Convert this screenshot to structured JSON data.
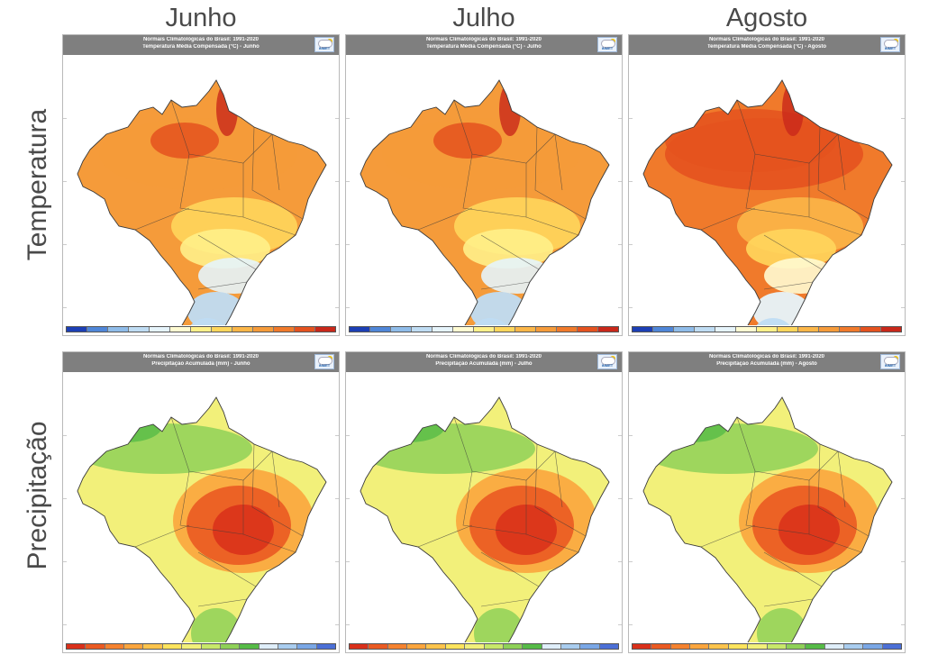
{
  "columns": [
    "Junho",
    "Julho",
    "Agosto"
  ],
  "rows": [
    "Temperatura",
    "Precipitação"
  ],
  "panels": [
    {
      "title": "Normais Climatológicas do Brasil: 1991-2020",
      "subtitle": "Temperatura Média Compensada (°C) - Junho"
    },
    {
      "title": "Normais Climatológicas do Brasil: 1991-2020",
      "subtitle": "Temperatura Média Compensada (°C) - Julho"
    },
    {
      "title": "Normais Climatológicas do Brasil: 1991-2020",
      "subtitle": "Temperatura Média Compensada (°C) - Agosto"
    },
    {
      "title": "Normais Climatológicas do Brasil: 1991-2020",
      "subtitle": "Precipitação Acumulada (mm) - Junho"
    },
    {
      "title": "Normais Climatológicas do Brasil: 1991-2020",
      "subtitle": "Precipitação Acumulada (mm) - Julho"
    },
    {
      "title": "Normais Climatológicas do Brasil: 1991-2020",
      "subtitle": "Precipitação Acumulada (mm) - Agosto"
    }
  ],
  "logo_text": "INMET",
  "colors": {
    "temperature_scale": [
      "#1c3fb5",
      "#4f86d8",
      "#8fbce9",
      "#bfdcf3",
      "#e6f4fb",
      "#fffbd2",
      "#fff08a",
      "#ffd65c",
      "#fbb648",
      "#f59b3a",
      "#f07a2b",
      "#e4521f",
      "#c9281a"
    ],
    "precipitation_scale": [
      "#d9301a",
      "#ea5a22",
      "#f5822f",
      "#fba53d",
      "#fdc44c",
      "#fde45d",
      "#f2f07a",
      "#c8e86a",
      "#8fd158",
      "#56bb47",
      "#dfeefa",
      "#a9cdef",
      "#7aa7e6",
      "#4b6fd6"
    ],
    "map_outline": "#3a3a3a",
    "header_bg": "#7f7f7f"
  }
}
